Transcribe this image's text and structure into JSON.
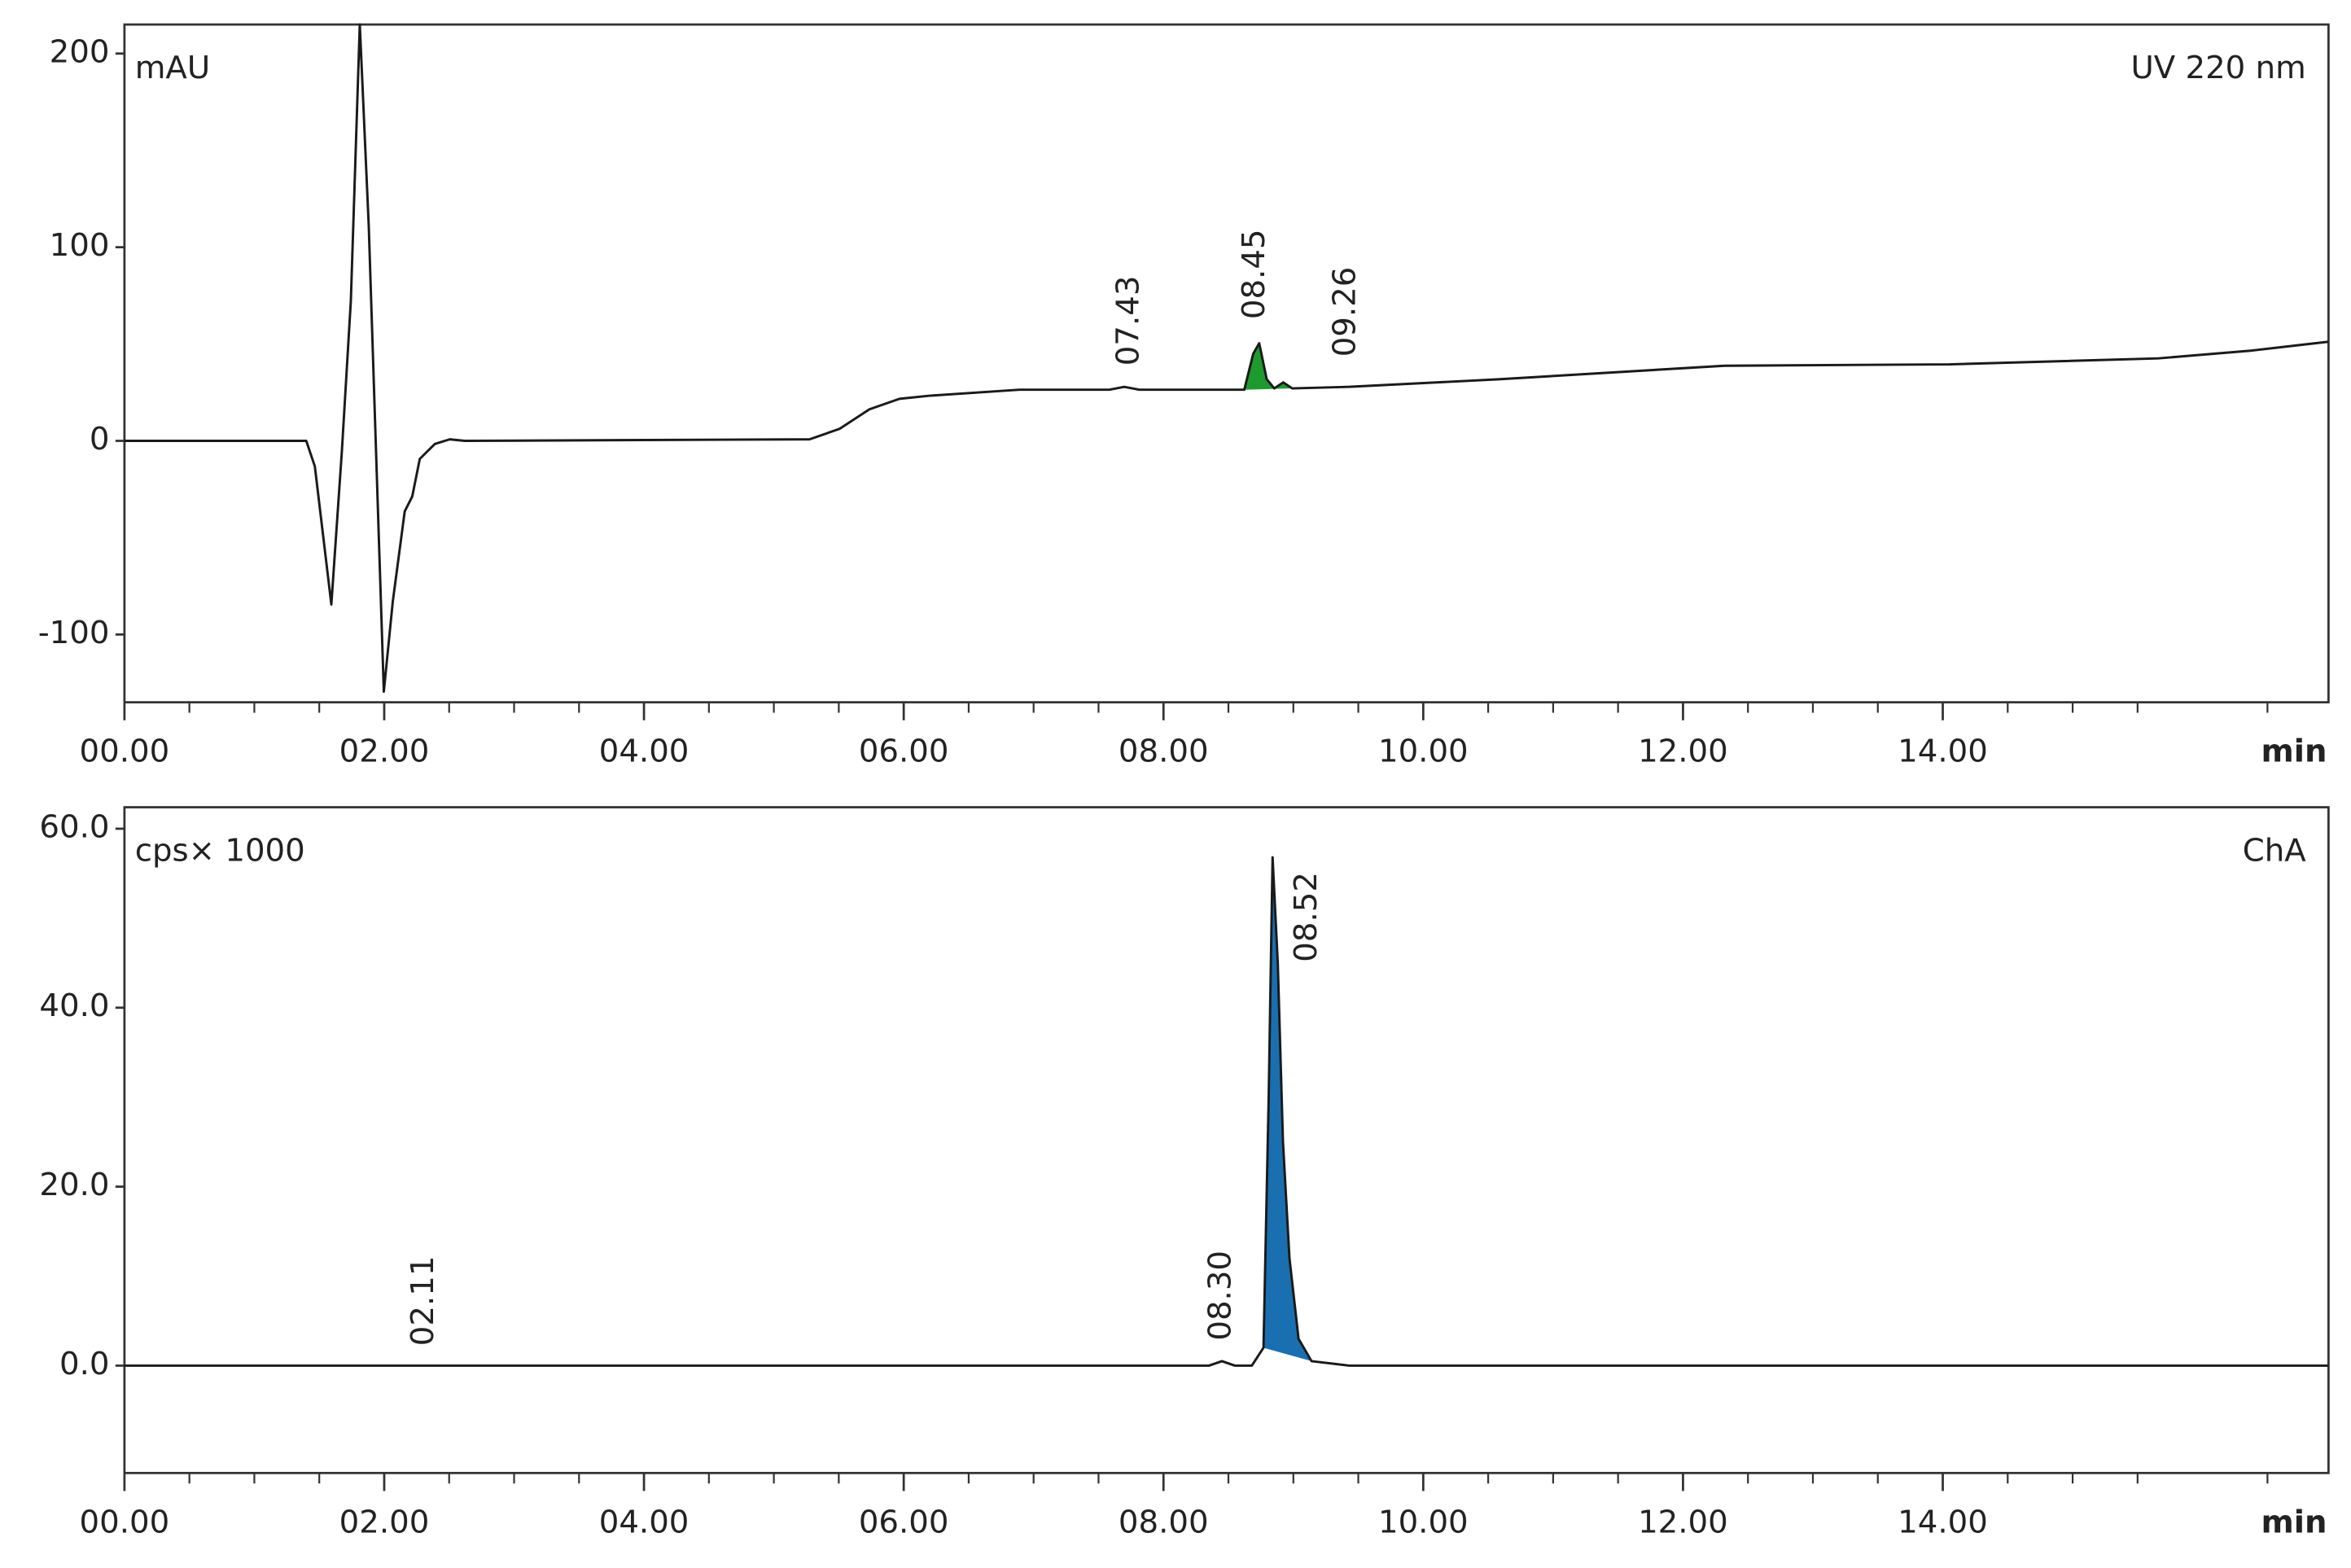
{
  "chart_data": [
    {
      "type": "line",
      "unit_label": "mAU",
      "channel_label": "UV 220 nm",
      "xlabel": "min",
      "color": "#1a1a1a",
      "x": [
        0,
        1.4,
        1.466,
        1.593,
        1.674,
        1.743,
        1.812,
        1.881,
        1.997,
        2.066,
        2.158,
        2.216,
        2.274,
        2.39,
        2.505,
        2.62,
        5.275,
        5.506,
        5.736,
        5.967,
        6.198,
        6.891,
        7.583,
        7.698,
        7.814,
        8.622,
        8.691,
        8.737,
        8.795,
        8.853,
        8.922,
        8.991,
        9.43,
        10.58,
        12.32,
        14.05,
        15.66,
        16.36,
        16.97
      ],
      "values": [
        0,
        0,
        -13.2,
        -84.5,
        -5.4,
        72.1,
        215,
        110.9,
        -129.5,
        -83.0,
        -36.4,
        -28.7,
        -9.3,
        -1.6,
        0.8,
        0,
        0.8,
        6.2,
        16.3,
        21.7,
        23.3,
        26.4,
        26.4,
        27.9,
        26.4,
        26.4,
        45.0,
        50.4,
        31.8,
        27.1,
        30.2,
        27.1,
        27.9,
        31.8,
        38.8,
        39.5,
        42.6,
        46.5,
        51.2
      ],
      "fill_range": [
        8.62,
        9.0
      ],
      "fill_color": "#1e9a2e",
      "annotations": [
        {
          "text": "07.43",
          "x": 7.74,
          "y": 38.8
        },
        {
          "text": "08.45",
          "x": 8.71,
          "y": 62.8
        },
        {
          "text": "09.26",
          "x": 9.41,
          "y": 43.4
        }
      ],
      "xlim": [
        0,
        16.97
      ],
      "ylim": [
        -135,
        215
      ],
      "xticks": [
        {
          "value": 0,
          "label": "00.00"
        },
        {
          "value": 2,
          "label": "02.00"
        },
        {
          "value": 4,
          "label": "04.00"
        },
        {
          "value": 6,
          "label": "06.00"
        },
        {
          "value": 8,
          "label": "08.00"
        },
        {
          "value": 10,
          "label": "10.00"
        },
        {
          "value": 12,
          "label": "12.00"
        },
        {
          "value": 14,
          "label": "14.00"
        }
      ],
      "yticks": [
        -100,
        0,
        100,
        200
      ]
    },
    {
      "type": "line",
      "unit_label": "cps× 1000",
      "channel_label": "ChA",
      "xlabel": "min",
      "color": "#1a1a1a",
      "x": [
        0,
        8.35,
        8.45,
        8.55,
        8.68,
        8.77,
        8.81,
        8.84,
        8.88,
        8.92,
        8.97,
        9.04,
        9.14,
        9.43,
        16.97
      ],
      "values": [
        0,
        0,
        0.5,
        0,
        0,
        2,
        30,
        56.8,
        45,
        25,
        12,
        3,
        0.5,
        0,
        0
      ],
      "fill_range": [
        8.75,
        9.2
      ],
      "fill_color": "#1a6fb0",
      "annotations": [
        {
          "text": "02.11",
          "x": 2.31,
          "y": 2.2
        },
        {
          "text": "08.30",
          "x": 8.45,
          "y": 2.8
        },
        {
          "text": "08.52",
          "x": 9.11,
          "y": 45.1
        }
      ],
      "xlim": [
        0,
        16.97
      ],
      "ylim": [
        -12,
        62.4
      ],
      "xticks": [
        {
          "value": 0,
          "label": "00.00"
        },
        {
          "value": 2,
          "label": "02.00"
        },
        {
          "value": 4,
          "label": "04.00"
        },
        {
          "value": 6,
          "label": "06.00"
        },
        {
          "value": 8,
          "label": "08.00"
        },
        {
          "value": 10,
          "label": "10.00"
        },
        {
          "value": 12,
          "label": "12.00"
        },
        {
          "value": 14,
          "label": "14.00"
        }
      ],
      "yticks": [
        {
          "value": 0,
          "label": "0.0"
        },
        {
          "value": 20,
          "label": "20.0"
        },
        {
          "value": 40,
          "label": "40.0"
        },
        {
          "value": 60,
          "label": "60.0"
        }
      ]
    }
  ]
}
